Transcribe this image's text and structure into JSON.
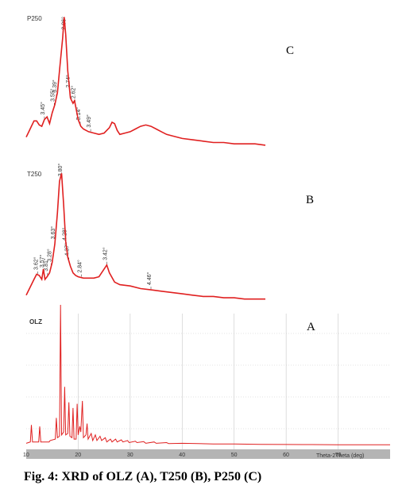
{
  "caption": "Fig. 4: XRD of OLZ (A), T250 (B), P250 (C)",
  "colors": {
    "trace": "#e02020",
    "grid": "#c8c8c8",
    "axis_bar": "#b4b4b4"
  },
  "chart_data": [
    {
      "type": "line",
      "panel_letter": "C",
      "sample_label": "P250",
      "xlabel": "",
      "ylabel": "",
      "xlim": [
        10,
        80
      ],
      "grid": false,
      "series": [
        {
          "values": [
            [
              10,
              0.09
            ],
            [
              10.5,
              0.13
            ],
            [
              11,
              0.17
            ],
            [
              11.5,
              0.21
            ],
            [
              12,
              0.21
            ],
            [
              12.5,
              0.18
            ],
            [
              13,
              0.17
            ],
            [
              13.5,
              0.22
            ],
            [
              14,
              0.24
            ],
            [
              14.5,
              0.19
            ],
            [
              15,
              0.27
            ],
            [
              15.5,
              0.33
            ],
            [
              16,
              0.42
            ],
            [
              16.5,
              0.62
            ],
            [
              17,
              0.82
            ],
            [
              17.3,
              0.98
            ],
            [
              17.6,
              0.85
            ],
            [
              18,
              0.58
            ],
            [
              18.5,
              0.38
            ],
            [
              19,
              0.34
            ],
            [
              19.3,
              0.36
            ],
            [
              19.6,
              0.3
            ],
            [
              20,
              0.22
            ],
            [
              20.5,
              0.17
            ],
            [
              21,
              0.15
            ],
            [
              22,
              0.13
            ],
            [
              23,
              0.12
            ],
            [
              24,
              0.11
            ],
            [
              25,
              0.12
            ],
            [
              26,
              0.16
            ],
            [
              26.5,
              0.2
            ],
            [
              27,
              0.19
            ],
            [
              27.5,
              0.14
            ],
            [
              28,
              0.11
            ],
            [
              29,
              0.12
            ],
            [
              30,
              0.13
            ],
            [
              31,
              0.15
            ],
            [
              32,
              0.17
            ],
            [
              33,
              0.18
            ],
            [
              34,
              0.17
            ],
            [
              35,
              0.15
            ],
            [
              36,
              0.13
            ],
            [
              37,
              0.11
            ],
            [
              38,
              0.1
            ],
            [
              40,
              0.08
            ],
            [
              42,
              0.07
            ],
            [
              44,
              0.06
            ],
            [
              46,
              0.05
            ],
            [
              48,
              0.05
            ],
            [
              50,
              0.04
            ],
            [
              52,
              0.04
            ],
            [
              54,
              0.04
            ],
            [
              56,
              0.03
            ]
          ]
        }
      ],
      "peak_labels": [
        {
          "x": 13.5,
          "label": "3.45°"
        },
        {
          "x": 15.4,
          "label": "3.55°"
        },
        {
          "x": 15.8,
          "label": "3.39°"
        },
        {
          "x": 17.6,
          "label": "2.86°"
        },
        {
          "x": 18.4,
          "label": "2.74°"
        },
        {
          "x": 19.4,
          "label": "2.62°"
        },
        {
          "x": 20.4,
          "label": "3.14°"
        },
        {
          "x": 22.4,
          "label": "3.49°"
        }
      ]
    },
    {
      "type": "line",
      "panel_letter": "B",
      "sample_label": "T250",
      "xlabel": "",
      "ylabel": "",
      "xlim": [
        10,
        80
      ],
      "grid": false,
      "series": [
        {
          "values": [
            [
              10,
              0.05
            ],
            [
              10.5,
              0.09
            ],
            [
              11,
              0.13
            ],
            [
              11.5,
              0.17
            ],
            [
              12,
              0.21
            ],
            [
              12.5,
              0.2
            ],
            [
              13,
              0.17
            ],
            [
              13.3,
              0.25
            ],
            [
              13.6,
              0.17
            ],
            [
              14,
              0.19
            ],
            [
              14.5,
              0.22
            ],
            [
              15,
              0.3
            ],
            [
              15.5,
              0.44
            ],
            [
              16,
              0.68
            ],
            [
              16.4,
              0.92
            ],
            [
              16.8,
              0.98
            ],
            [
              17.2,
              0.74
            ],
            [
              17.6,
              0.46
            ],
            [
              18,
              0.34
            ],
            [
              18.5,
              0.27
            ],
            [
              19,
              0.22
            ],
            [
              19.5,
              0.2
            ],
            [
              20,
              0.19
            ],
            [
              21,
              0.18
            ],
            [
              22,
              0.18
            ],
            [
              23,
              0.18
            ],
            [
              24,
              0.19
            ],
            [
              25,
              0.25
            ],
            [
              25.5,
              0.28
            ],
            [
              26,
              0.22
            ],
            [
              27,
              0.15
            ],
            [
              28,
              0.13
            ],
            [
              30,
              0.12
            ],
            [
              32,
              0.1
            ],
            [
              34,
              0.09
            ],
            [
              36,
              0.08
            ],
            [
              38,
              0.07
            ],
            [
              40,
              0.06
            ],
            [
              42,
              0.05
            ],
            [
              44,
              0.04
            ],
            [
              46,
              0.04
            ],
            [
              48,
              0.03
            ],
            [
              50,
              0.03
            ],
            [
              52,
              0.02
            ],
            [
              54,
              0.02
            ],
            [
              56,
              0.02
            ]
          ]
        }
      ],
      "peak_labels": [
        {
          "x": 12.2,
          "label": "3.62°"
        },
        {
          "x": 13.4,
          "label": "3.57°"
        },
        {
          "x": 14.1,
          "label": "3.81°"
        },
        {
          "x": 14.8,
          "label": "3.28°"
        },
        {
          "x": 15.5,
          "label": "3.63°"
        },
        {
          "x": 16.9,
          "label": "3.80°"
        },
        {
          "x": 17.7,
          "label": "4.28°"
        },
        {
          "x": 18.2,
          "label": "4.37°"
        },
        {
          "x": 20.6,
          "label": "2.84°"
        },
        {
          "x": 25.5,
          "label": "3.42°"
        },
        {
          "x": 34.0,
          "label": "4.46°"
        }
      ]
    },
    {
      "type": "line",
      "panel_letter": "A",
      "sample_label": "OLZ",
      "xlabel": "Theta-2Theta (deg)",
      "ylabel": "",
      "xlim": [
        10,
        80
      ],
      "xticks": [
        10,
        20,
        30,
        40,
        50,
        60,
        70
      ],
      "grid": true,
      "series": [
        {
          "values": [
            [
              10,
              0.02
            ],
            [
              10.8,
              0.03
            ],
            [
              11,
              0.15
            ],
            [
              11.2,
              0.03
            ],
            [
              12.4,
              0.03
            ],
            [
              12.6,
              0.14
            ],
            [
              12.8,
              0.03
            ],
            [
              14,
              0.03
            ],
            [
              14.4,
              0.03
            ],
            [
              14.6,
              0.04
            ],
            [
              15.6,
              0.05
            ],
            [
              15.8,
              0.2
            ],
            [
              16,
              0.06
            ],
            [
              16.4,
              0.07
            ],
            [
              16.6,
              1.0
            ],
            [
              16.8,
              0.08
            ],
            [
              17.2,
              0.1
            ],
            [
              17.4,
              0.42
            ],
            [
              17.6,
              0.08
            ],
            [
              18,
              0.09
            ],
            [
              18.2,
              0.31
            ],
            [
              18.4,
              0.07
            ],
            [
              18.8,
              0.06
            ],
            [
              19,
              0.27
            ],
            [
              19.2,
              0.05
            ],
            [
              19.6,
              0.05
            ],
            [
              19.8,
              0.3
            ],
            [
              20,
              0.08
            ],
            [
              20.3,
              0.14
            ],
            [
              20.5,
              0.1
            ],
            [
              20.8,
              0.32
            ],
            [
              21,
              0.06
            ],
            [
              21.5,
              0.08
            ],
            [
              21.7,
              0.16
            ],
            [
              21.9,
              0.05
            ],
            [
              22.5,
              0.09
            ],
            [
              22.8,
              0.04
            ],
            [
              23.3,
              0.08
            ],
            [
              23.6,
              0.04
            ],
            [
              24.2,
              0.07
            ],
            [
              24.5,
              0.04
            ],
            [
              25.2,
              0.06
            ],
            [
              25.5,
              0.03
            ],
            [
              26.2,
              0.05
            ],
            [
              26.5,
              0.03
            ],
            [
              27.2,
              0.05
            ],
            [
              27.5,
              0.03
            ],
            [
              28.3,
              0.045
            ],
            [
              28.6,
              0.03
            ],
            [
              29.5,
              0.04
            ],
            [
              29.8,
              0.025
            ],
            [
              31,
              0.035
            ],
            [
              31.3,
              0.025
            ],
            [
              32.6,
              0.032
            ],
            [
              33,
              0.02
            ],
            [
              34.6,
              0.03
            ],
            [
              35,
              0.02
            ],
            [
              37,
              0.025
            ],
            [
              37.4,
              0.018
            ],
            [
              40,
              0.02
            ],
            [
              43,
              0.018
            ],
            [
              46,
              0.016
            ],
            [
              50,
              0.015
            ],
            [
              55,
              0.013
            ],
            [
              60,
              0.012
            ],
            [
              65,
              0.011
            ],
            [
              70,
              0.01
            ],
            [
              75,
              0.01
            ],
            [
              80,
              0.01
            ]
          ]
        }
      ]
    }
  ]
}
